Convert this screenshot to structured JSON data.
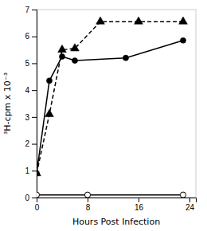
{
  "chart_data": {
    "type": "line",
    "xlabel": "Hours Post Infection",
    "ylabel": "³H-cpm x 10⁻³",
    "xlim": [
      0,
      25
    ],
    "xticks": [
      0,
      8,
      16,
      24
    ],
    "ylim": [
      0,
      7
    ],
    "yticks": [
      0,
      1,
      2,
      3,
      4,
      5,
      6,
      7
    ],
    "grid": false,
    "series": [
      {
        "x": [
          0,
          2,
          4,
          6,
          10,
          16,
          23
        ],
        "values": [
          0.9,
          3.1,
          5.5,
          5.55,
          6.55,
          6.55,
          6.55
        ],
        "color": "#000000",
        "marker": "triangle",
        "line_style": "dashed"
      },
      {
        "x": [
          0,
          2,
          4,
          6,
          14,
          23
        ],
        "values": [
          0.9,
          4.35,
          5.25,
          5.1,
          5.2,
          5.85
        ],
        "color": "#000000",
        "marker": "circle",
        "line_style": "solid"
      },
      {
        "x": [
          0,
          8,
          23
        ],
        "values": [
          0.1,
          0.1,
          0.1
        ],
        "color": "#000000",
        "marker": "open-circle",
        "line_style": "solid"
      }
    ]
  }
}
